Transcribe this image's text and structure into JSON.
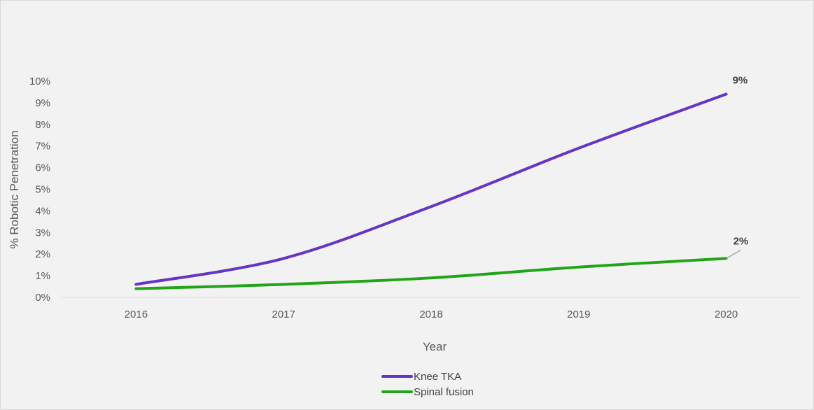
{
  "chart_data": {
    "type": "line",
    "title": "",
    "xlabel": "Year",
    "ylabel": "% Robotic Penetration",
    "x": [
      "2016",
      "2017",
      "2018",
      "2019",
      "2020"
    ],
    "ylim": [
      0,
      10
    ],
    "yticks": [
      "0%",
      "1%",
      "2%",
      "3%",
      "4%",
      "5%",
      "6%",
      "7%",
      "8%",
      "9%",
      "10%"
    ],
    "grid": false,
    "legend_position": "bottom",
    "series": [
      {
        "name": "Knee TKA",
        "values": [
          0.6,
          1.8,
          4.2,
          6.9,
          9.4
        ],
        "color": "#6535c5",
        "end_label": "9%"
      },
      {
        "name": "Spinal fusion",
        "values": [
          0.4,
          0.6,
          0.9,
          1.4,
          1.8
        ],
        "color": "#21a417",
        "end_label": "2%"
      }
    ]
  }
}
